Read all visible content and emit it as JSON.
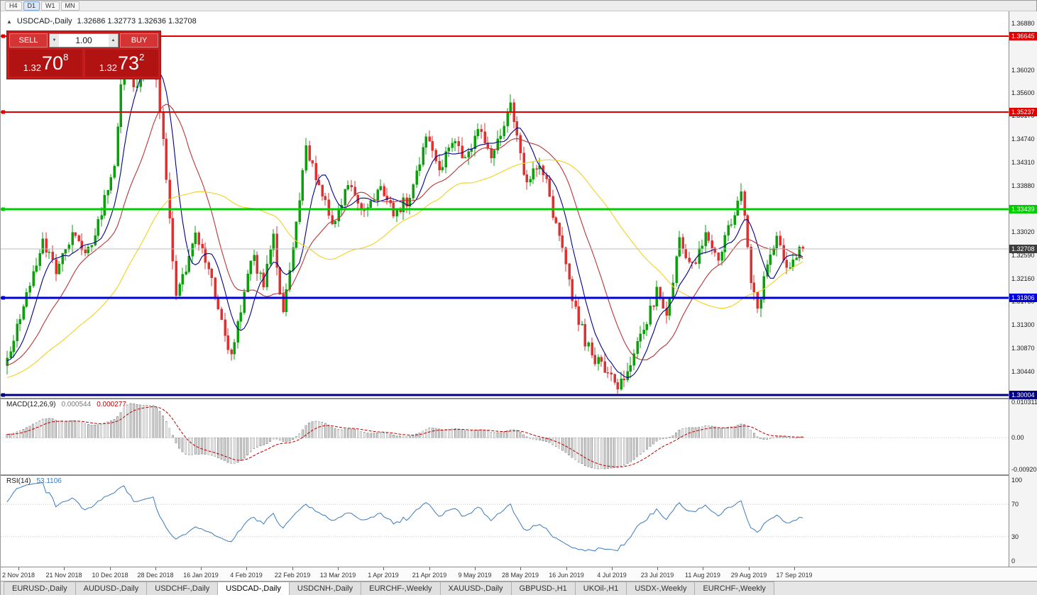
{
  "toolbar": {
    "timeframes": [
      {
        "label": "H4",
        "active": false
      },
      {
        "label": "D1",
        "active": true
      },
      {
        "label": "W1",
        "active": false
      },
      {
        "label": "MN",
        "active": false
      }
    ]
  },
  "chart": {
    "collapse_icon": "▲",
    "header_symbol": "USDCAD-,Daily",
    "header_ohlc": "1.32686 1.32773 1.32636 1.32708",
    "trade_panel": {
      "sell_label": "SELL",
      "buy_label": "BUY",
      "volume": "1.00",
      "vol_down_icon": "▼",
      "vol_up_icon": "▲",
      "sell_price_base": "1.32",
      "sell_price_pips": "70",
      "sell_price_point": "8",
      "buy_price_base": "1.32",
      "buy_price_pips": "73",
      "buy_price_point": "2"
    },
    "levels": [
      {
        "value": 1.36645,
        "label": "1.36645",
        "color": "#e00000",
        "thickness": 2
      },
      {
        "value": 1.35237,
        "label": "1.35237",
        "color": "#e00000",
        "thickness": 2
      },
      {
        "value": 1.33439,
        "label": "1.33439",
        "color": "#00cc00",
        "thickness": 3
      },
      {
        "value": 1.31806,
        "label": "1.31806",
        "color": "#0000dd",
        "thickness": 3
      },
      {
        "value": 1.30004,
        "label": "1.30004",
        "color": "#000080",
        "thickness": 3
      }
    ],
    "current_price": {
      "value": 1.32708,
      "label": "1.32708",
      "color": "#3c3c3c"
    }
  },
  "price_axis": {
    "labels": [
      "1.36880",
      "1.36020",
      "1.35600",
      "1.35170",
      "1.34740",
      "1.34310",
      "1.33880",
      "1.33020",
      "1.32590",
      "1.32160",
      "1.31730",
      "1.31300",
      "1.30870",
      "1.30440"
    ]
  },
  "macd_panel": {
    "title": "MACD(12,26,9)",
    "value_main": "0.000544",
    "value_signal": "0.000277",
    "axis_labels": [
      {
        "text": "0.010311",
        "pos": "top"
      },
      {
        "text": "0.00",
        "pos": "zero"
      },
      {
        "text": "-0.009203",
        "pos": "bottom"
      }
    ]
  },
  "rsi_panel": {
    "title": "RSI(14)",
    "value": "53.1106",
    "axis_labels": [
      "100",
      "70",
      "30",
      "0"
    ],
    "levels": [
      70,
      30
    ]
  },
  "date_axis": {
    "labels": [
      "2 Nov 2018",
      "21 Nov 2018",
      "10 Dec 2018",
      "28 Dec 2018",
      "16 Jan 2019",
      "4 Feb 2019",
      "22 Feb 2019",
      "13 Mar 2019",
      "1 Apr 2019",
      "21 Apr 2019",
      "9 May 2019",
      "28 May 2019",
      "16 Jun 2019",
      "4 Jul 2019",
      "23 Jul 2019",
      "11 Aug 2019",
      "29 Aug 2019",
      "17 Sep 2019"
    ]
  },
  "tabs": [
    {
      "label": "EURUSD-,Daily",
      "active": false
    },
    {
      "label": "AUDUSD-,Daily",
      "active": false
    },
    {
      "label": "USDCHF-,Daily",
      "active": false
    },
    {
      "label": "USDCAD-,Daily",
      "active": true
    },
    {
      "label": "USDCNH-,Daily",
      "active": false
    },
    {
      "label": "EURCHF-,Weekly",
      "active": false
    },
    {
      "label": "XAUUSD-,Daily",
      "active": false
    },
    {
      "label": "GBPUSD-,H1",
      "active": false
    },
    {
      "label": "UKOil-,H1",
      "active": false
    },
    {
      "label": "USDX-,Weekly",
      "active": false
    },
    {
      "label": "EURCHF-,Weekly",
      "active": false
    }
  ],
  "chart_data": {
    "type": "candlestick",
    "title": "USDCAD-,Daily",
    "count": 246,
    "ohlc_current": {
      "open": 1.32686,
      "high": 1.32773,
      "low": 1.32636,
      "close": 1.32708
    },
    "close_waypoints": [
      [
        0,
        1.306
      ],
      [
        6,
        1.318
      ],
      [
        11,
        1.329
      ],
      [
        15,
        1.323
      ],
      [
        20,
        1.33
      ],
      [
        24,
        1.326
      ],
      [
        27,
        1.329
      ],
      [
        30,
        1.336
      ],
      [
        33,
        1.343
      ],
      [
        36,
        1.3655
      ],
      [
        39,
        1.357
      ],
      [
        42,
        1.36
      ],
      [
        45,
        1.364
      ],
      [
        48,
        1.348
      ],
      [
        52,
        1.318
      ],
      [
        58,
        1.33
      ],
      [
        64,
        1.319
      ],
      [
        69,
        1.3065
      ],
      [
        75,
        1.326
      ],
      [
        79,
        1.321
      ],
      [
        82,
        1.329
      ],
      [
        85,
        1.315
      ],
      [
        92,
        1.345
      ],
      [
        96,
        1.339
      ],
      [
        100,
        1.331
      ],
      [
        105,
        1.34
      ],
      [
        110,
        1.334
      ],
      [
        115,
        1.339
      ],
      [
        119,
        1.333
      ],
      [
        124,
        1.337
      ],
      [
        129,
        1.348
      ],
      [
        133,
        1.342
      ],
      [
        137,
        1.347
      ],
      [
        141,
        1.344
      ],
      [
        145,
        1.349
      ],
      [
        149,
        1.345
      ],
      [
        152,
        1.347
      ],
      [
        155,
        1.355
      ],
      [
        157,
        1.348
      ],
      [
        160,
        1.339
      ],
      [
        163,
        1.343
      ],
      [
        166,
        1.339
      ],
      [
        170,
        1.329
      ],
      [
        174,
        1.318
      ],
      [
        178,
        1.31
      ],
      [
        182,
        1.306
      ],
      [
        186,
        1.303
      ],
      [
        189,
        1.302
      ],
      [
        193,
        1.308
      ],
      [
        197,
        1.314
      ],
      [
        200,
        1.319
      ],
      [
        203,
        1.315
      ],
      [
        207,
        1.328
      ],
      [
        211,
        1.324
      ],
      [
        215,
        1.329
      ],
      [
        219,
        1.326
      ],
      [
        223,
        1.332
      ],
      [
        226,
        1.338
      ],
      [
        229,
        1.322
      ],
      [
        231,
        1.315
      ],
      [
        234,
        1.324
      ],
      [
        237,
        1.329
      ],
      [
        240,
        1.323
      ],
      [
        243,
        1.326
      ],
      [
        245,
        1.32708
      ]
    ],
    "moving_averages": [
      {
        "period": 8,
        "color": "#00008b"
      },
      {
        "period": 20,
        "color": "#b93535"
      },
      {
        "period": 50,
        "color": "#f2d21f"
      }
    ],
    "macd_params": [
      12,
      26,
      9
    ],
    "rsi_period": 14,
    "y_axis_top": 1.3688,
    "y_axis_bottom": 1.30004
  }
}
